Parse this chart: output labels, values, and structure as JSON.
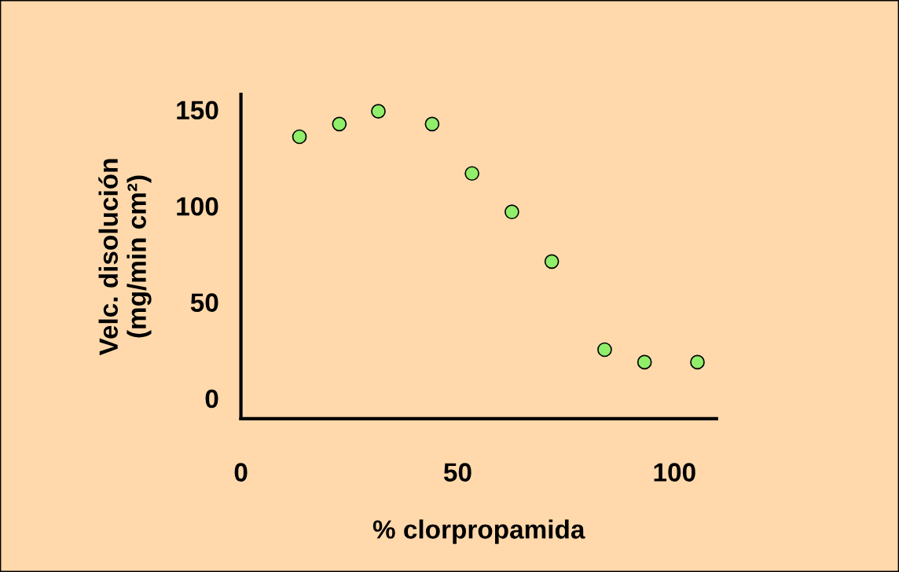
{
  "chart_data": {
    "type": "scatter",
    "xlabel": "% clorpropamida",
    "ylabel": "Velc. disolución\n(mg/min cm²)",
    "x": [
      13.5,
      22.7,
      31.7,
      44.1,
      53.3,
      62.5,
      71.7,
      83.9,
      93.1,
      105.3
    ],
    "series": [
      {
        "color": "#90ee6a",
        "values": [
          136,
          142.6,
          149.2,
          142.6,
          116.9,
          96.9,
          71.1,
          25.3,
          18.8,
          18.8
        ]
      }
    ],
    "xlim": [
      0,
      109.7
    ],
    "ylim": [
      -10.6,
      158
    ],
    "xticks": [
      0,
      50,
      100
    ],
    "yticks": [
      0,
      50,
      100,
      150
    ],
    "marker": "circle",
    "grid": false,
    "legend": false
  }
}
